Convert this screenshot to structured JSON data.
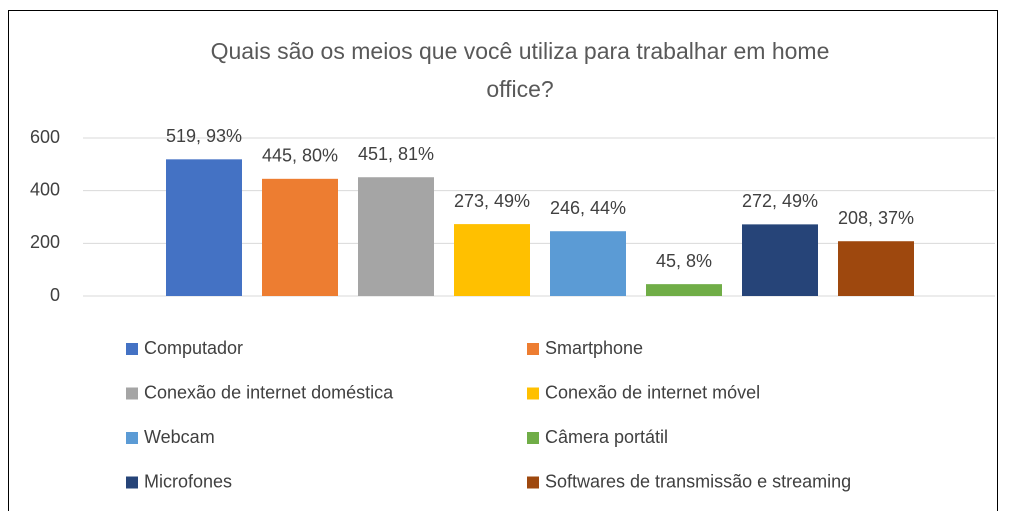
{
  "chart_data": {
    "type": "bar",
    "title": "Quais são os meios que você utiliza para trabalhar em home office?",
    "categories": [
      "Computador",
      "Smartphone",
      "Conexão de internet doméstica",
      "Conexão de internet móvel",
      "Webcam",
      "Câmera portátil",
      "Microfones",
      "Softwares de transmissão e streaming"
    ],
    "values": [
      519,
      445,
      451,
      273,
      246,
      45,
      272,
      208
    ],
    "value_labels": [
      "519, 93%",
      "445, 80%",
      "451, 81%",
      "273, 49%",
      "246, 44%",
      "45, 8%",
      "272, 49%",
      "208, 37%"
    ],
    "colors": [
      "#4472c4",
      "#ed7d31",
      "#a5a5a5",
      "#ffc000",
      "#5b9bd5",
      "#70ad47",
      "#264478",
      "#9e480e"
    ],
    "ylim": [
      0,
      600
    ],
    "yticks": [
      0,
      200,
      400,
      600
    ],
    "grid": true,
    "legend": "bottom"
  }
}
